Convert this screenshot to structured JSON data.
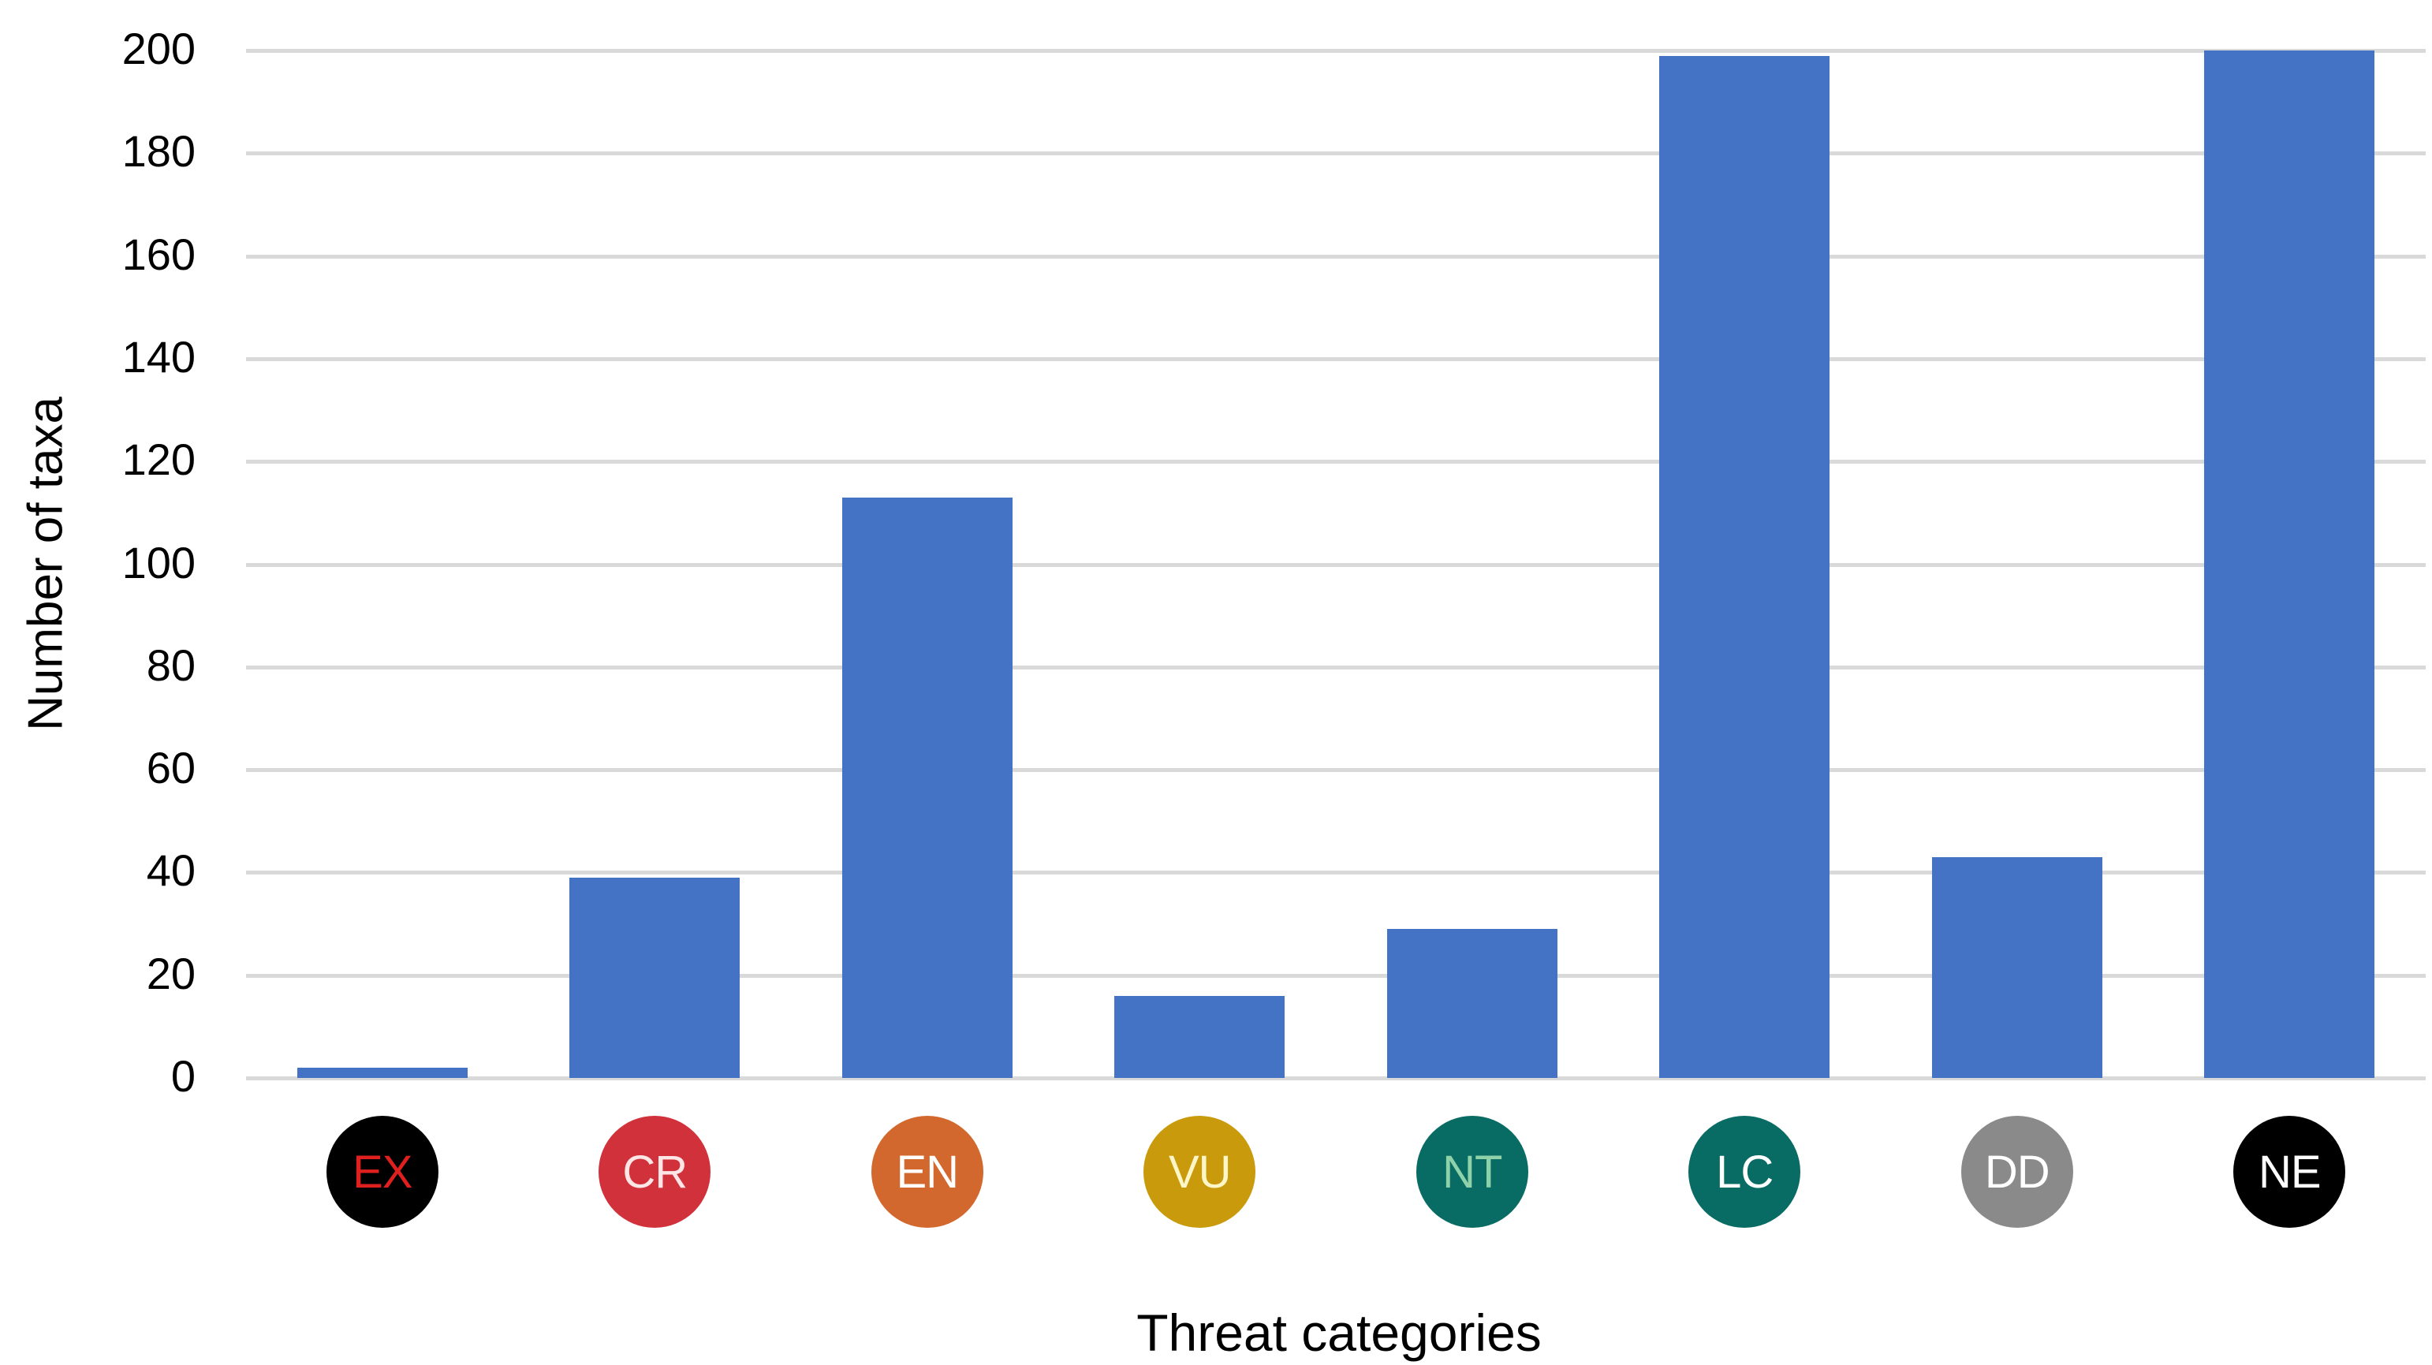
{
  "chart_data": {
    "type": "bar",
    "title": "",
    "xlabel": "Threat categories",
    "ylabel": "Number of taxa",
    "categories": [
      "EX",
      "CR",
      "EN",
      "VU",
      "NT",
      "LC",
      "DD",
      "NE"
    ],
    "values": [
      2,
      39,
      113,
      16,
      29,
      199,
      43,
      200
    ],
    "ylim": [
      0,
      200
    ],
    "yticks": [
      0,
      20,
      40,
      60,
      80,
      100,
      120,
      140,
      160,
      180,
      200
    ],
    "grid": true,
    "legend": null,
    "bar_color": "#4472c4",
    "category_badges": [
      {
        "label": "EX",
        "fill": "#000000",
        "text_color": "#e0201f"
      },
      {
        "label": "CR",
        "fill": "#d1313a",
        "text_color": "#ffe6e6"
      },
      {
        "label": "EN",
        "fill": "#d2682e",
        "text_color": "#ffffff"
      },
      {
        "label": "VU",
        "fill": "#c99a0c",
        "text_color": "#fff6c8"
      },
      {
        "label": "NT",
        "fill": "#086b64",
        "text_color": "#8fd1a8"
      },
      {
        "label": "LC",
        "fill": "#086b64",
        "text_color": "#ffffff"
      },
      {
        "label": "DD",
        "fill": "#8a8a8a",
        "text_color": "#ffffff"
      },
      {
        "label": "NE",
        "fill": "#000000",
        "text_color": "#ffffff"
      }
    ]
  },
  "axes": {
    "x_title": "Threat categories",
    "y_title": "Number of taxa",
    "y_tick_labels": [
      "0",
      "20",
      "40",
      "60",
      "80",
      "100",
      "120",
      "140",
      "160",
      "180",
      "200"
    ]
  }
}
